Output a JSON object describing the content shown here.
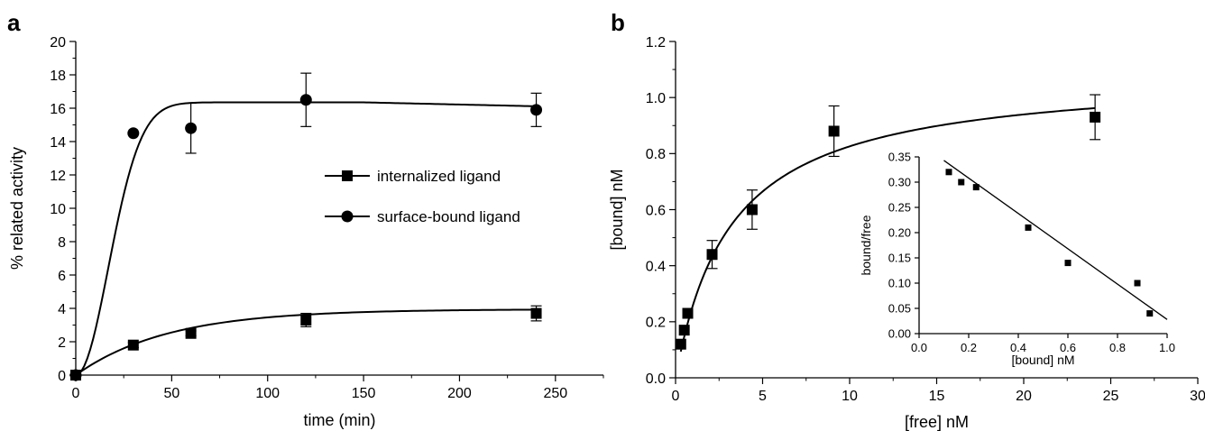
{
  "panels": [
    "a",
    "b"
  ],
  "chart_data": [
    {
      "type": "line",
      "panel": "a",
      "xlabel": "time (min)",
      "ylabel": "% related activity",
      "xlim": [
        0,
        275
      ],
      "ylim": [
        0,
        20
      ],
      "xticks": [
        0,
        50,
        100,
        150,
        200,
        250
      ],
      "yticks": [
        0,
        2,
        4,
        6,
        8,
        10,
        12,
        14,
        16,
        18,
        20
      ],
      "legend_position": "center-right",
      "series": [
        {
          "name": "internalized ligand",
          "marker": "square",
          "x": [
            0,
            30,
            60,
            120,
            240
          ],
          "y": [
            0,
            1.8,
            2.5,
            3.3,
            3.7
          ],
          "err": [
            0,
            0.15,
            0.15,
            0.4,
            0.45
          ],
          "fit": "saturation"
        },
        {
          "name": "surface-bound ligand",
          "marker": "circle",
          "x": [
            0,
            30,
            60,
            120,
            240
          ],
          "y": [
            0,
            14.5,
            14.8,
            16.5,
            15.9
          ],
          "err": [
            0,
            0,
            1.5,
            1.6,
            1.0
          ],
          "fit": "rise-plateau"
        }
      ]
    },
    {
      "type": "scatter",
      "panel": "b",
      "xlabel": "[free] nM",
      "ylabel": "[bound] nM",
      "xlim": [
        0,
        30
      ],
      "ylim": [
        0,
        1.2
      ],
      "xticks": [
        0,
        5,
        10,
        15,
        20,
        25,
        30
      ],
      "yticks": [
        0.0,
        0.2,
        0.4,
        0.6,
        0.8,
        1.0,
        1.2
      ],
      "series": [
        {
          "marker": "square",
          "x": [
            0.3,
            0.5,
            0.7,
            2.1,
            4.4,
            9.1,
            24.1
          ],
          "y": [
            0.12,
            0.17,
            0.23,
            0.44,
            0.6,
            0.88,
            0.93
          ],
          "err": [
            0,
            0,
            0,
            0.05,
            0.07,
            0.09,
            0.08
          ],
          "fit": {
            "type": "one-site binding",
            "Bmax": 1.09,
            "Kd": 3.2
          }
        }
      ]
    },
    {
      "type": "scatter",
      "panel": "b-inset",
      "xlabel": "[bound] nM",
      "ylabel": "bound/free",
      "xlim": [
        0,
        1.0
      ],
      "ylim": [
        0,
        0.35
      ],
      "xticks": [
        0.0,
        0.2,
        0.4,
        0.6,
        0.8,
        1.0
      ],
      "yticks": [
        0.0,
        0.05,
        0.1,
        0.15,
        0.2,
        0.25,
        0.3,
        0.35
      ],
      "series": [
        {
          "marker": "square",
          "x": [
            0.12,
            0.17,
            0.23,
            0.44,
            0.6,
            0.88,
            0.93
          ],
          "y": [
            0.32,
            0.3,
            0.29,
            0.21,
            0.14,
            0.1,
            0.04
          ],
          "fit": {
            "type": "linear",
            "x": [
              0.1,
              1.0
            ],
            "y": [
              0.343,
              0.028
            ]
          }
        }
      ]
    }
  ]
}
